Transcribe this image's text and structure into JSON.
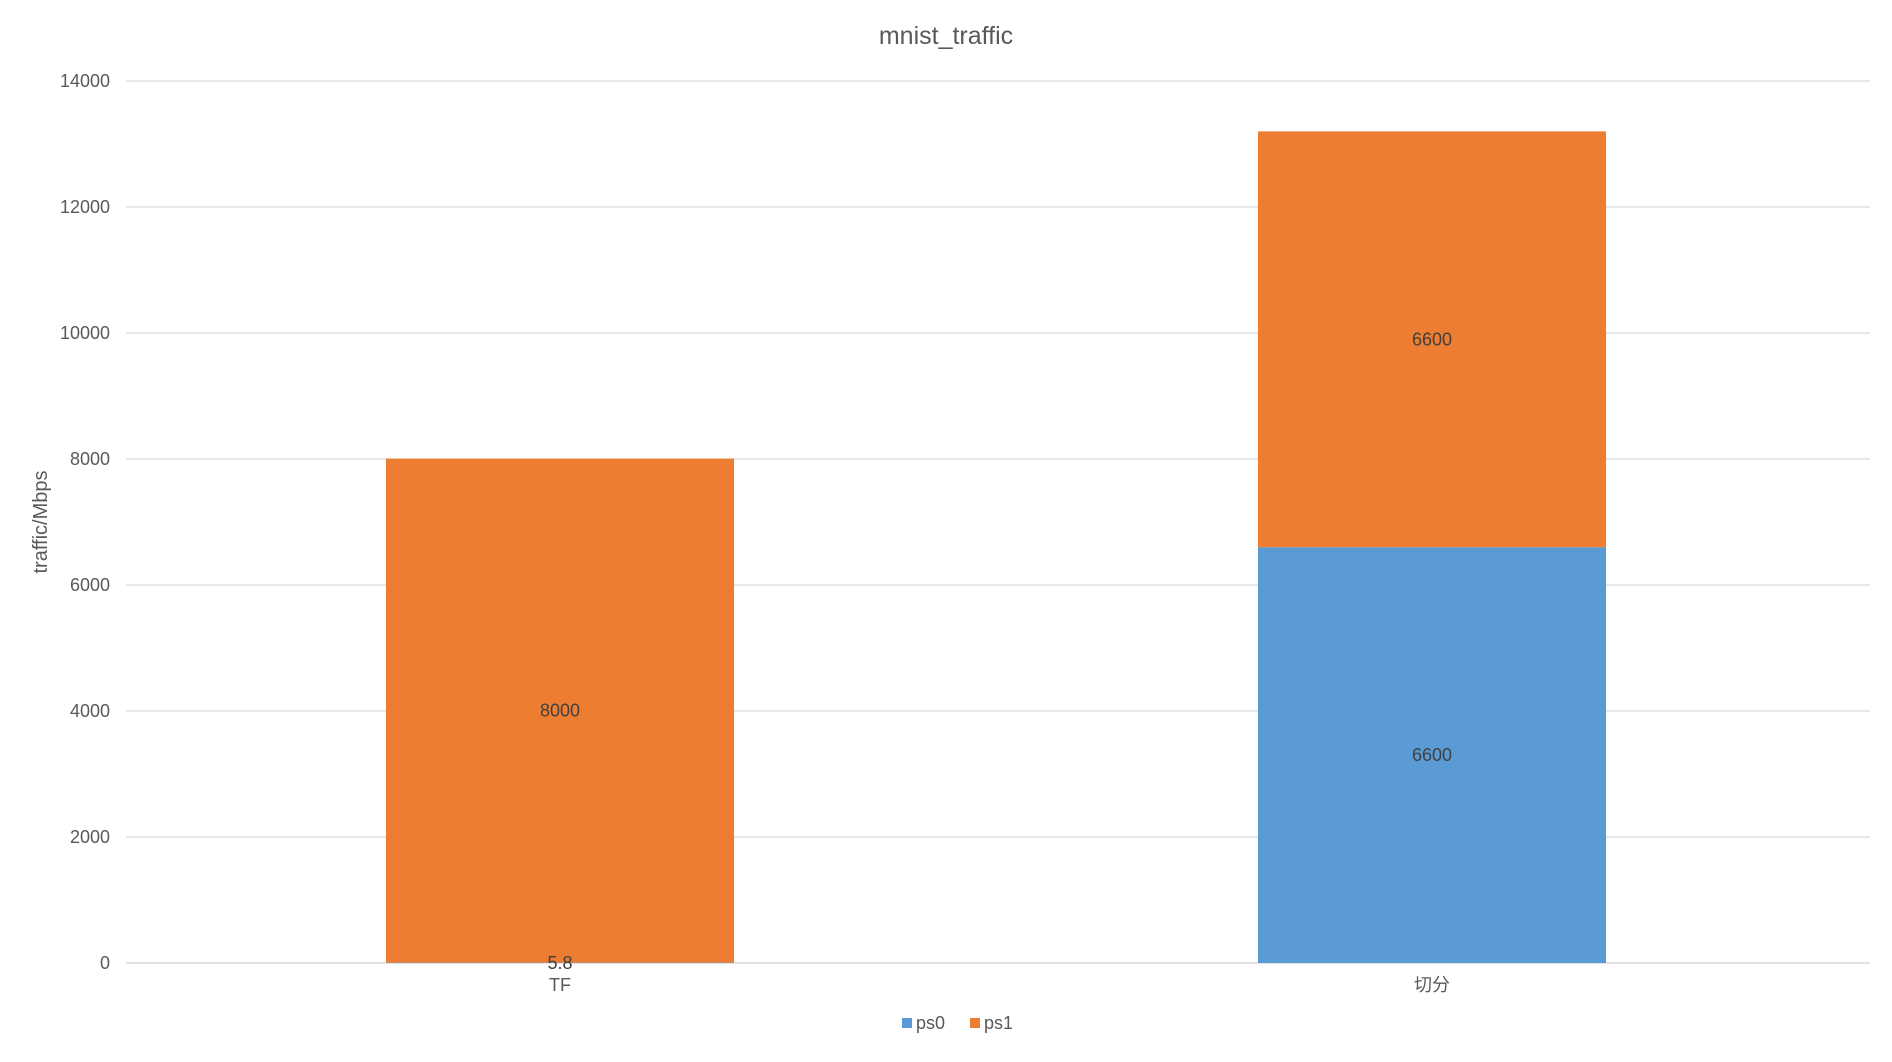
{
  "chart_data": {
    "type": "bar",
    "stacked": true,
    "title": "mnist_traffic",
    "xlabel": "",
    "ylabel": "traffic/Mbps",
    "categories": [
      "TF",
      "切分"
    ],
    "series": [
      {
        "name": "ps0",
        "values": [
          5.8,
          6600
        ],
        "color": "#5B9BD5"
      },
      {
        "name": "ps1",
        "values": [
          8000,
          6600
        ],
        "color": "#ED7D31"
      }
    ],
    "ylim": [
      0,
      14000
    ],
    "yticks": [
      0,
      2000,
      4000,
      6000,
      8000,
      10000,
      12000,
      14000
    ],
    "ytick_labels": [
      "0",
      "2000",
      "4000",
      "6000",
      "8000",
      "10000",
      "12000",
      "14000"
    ],
    "data_labels": [
      {
        "series": "ps0",
        "category": "TF",
        "text": "5.8"
      },
      {
        "series": "ps1",
        "category": "TF",
        "text": "8000"
      },
      {
        "series": "ps0",
        "category": "切分",
        "text": "6600"
      },
      {
        "series": "ps1",
        "category": "切分",
        "text": "6600"
      }
    ],
    "grid": true,
    "legend_position": "bottom",
    "colors": {
      "gridline": "#D9D9D9",
      "text": "#595959",
      "data_label": "#404040"
    }
  }
}
